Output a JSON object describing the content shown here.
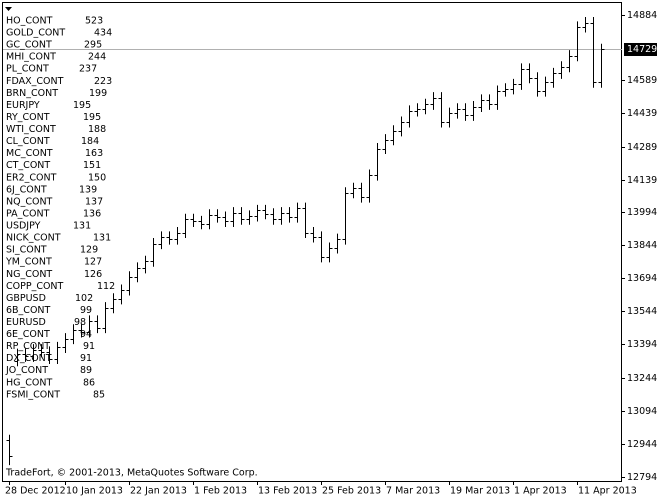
{
  "chart_data": {
    "type": "ohlc",
    "footer": "TradeFort, © 2001-2013, MetaQuotes Software Corp.",
    "price_label": 14729,
    "ylim": [
      12794,
      14884
    ],
    "yticks": [
      14884,
      14589,
      14439,
      14289,
      14139,
      13994,
      13844,
      13694,
      13544,
      13394,
      13244,
      13094,
      12944,
      12794
    ],
    "color": "#000000",
    "categories": [
      "28 Dec 2012",
      null,
      null,
      null,
      null,
      null,
      null,
      "10 Jan 2013",
      null,
      null,
      null,
      null,
      null,
      null,
      null,
      "22 Jan 2013",
      null,
      null,
      null,
      null,
      null,
      null,
      null,
      "1 Feb 2013",
      null,
      null,
      null,
      null,
      null,
      null,
      null,
      "13 Feb 2013",
      null,
      null,
      null,
      null,
      null,
      null,
      null,
      "25 Feb 2013",
      null,
      null,
      null,
      null,
      null,
      null,
      null,
      "7 Mar 2013",
      null,
      null,
      null,
      null,
      null,
      null,
      null,
      "19 Mar 2013",
      null,
      null,
      null,
      null,
      null,
      null,
      null,
      "1 Apr 2013",
      null,
      null,
      null,
      null,
      null,
      null,
      null,
      "11 Apr 2013",
      null,
      null,
      null
    ],
    "open": [
      12960,
      13320,
      13350,
      13340,
      13370,
      13360,
      13330,
      13380,
      13420,
      13460,
      13450,
      13500,
      13470,
      13560,
      13600,
      13640,
      13700,
      13740,
      13770,
      13850,
      13880,
      13870,
      13900,
      13960,
      13950,
      13940,
      13980,
      13970,
      13950,
      13990,
      13960,
      13975,
      14000,
      13985,
      13960,
      13990,
      13970,
      14010,
      13900,
      13880,
      13790,
      13830,
      13870,
      14080,
      14100,
      14060,
      14160,
      14280,
      14320,
      14360,
      14400,
      14450,
      14460,
      14480,
      14510,
      14400,
      14440,
      14460,
      14430,
      14470,
      14500,
      14480,
      14540,
      14550,
      14570,
      14640,
      14600,
      14540,
      14580,
      14620,
      14650,
      14700,
      14830,
      14850,
      14580
    ],
    "high": [
      12985,
      13375,
      13375,
      13395,
      13395,
      13385,
      13405,
      13445,
      13485,
      13485,
      13525,
      13525,
      13585,
      13625,
      13665,
      13725,
      13765,
      13795,
      13875,
      13905,
      13905,
      13925,
      13985,
      13985,
      13975,
      14005,
      14005,
      13995,
      14015,
      14015,
      14000,
      14025,
      14025,
      14010,
      14015,
      14015,
      14035,
      14035,
      13925,
      13905,
      13855,
      13895,
      14105,
      14125,
      14125,
      14185,
      14305,
      14345,
      14385,
      14425,
      14475,
      14485,
      14505,
      14535,
      14535,
      14465,
      14485,
      14485,
      14495,
      14525,
      14525,
      14565,
      14575,
      14595,
      14665,
      14665,
      14625,
      14605,
      14645,
      14675,
      14725,
      14855,
      14875,
      14875,
      14754
    ],
    "low": [
      12848,
      13295,
      13315,
      13315,
      13335,
      13305,
      13305,
      13355,
      13395,
      13425,
      13425,
      13445,
      13445,
      13535,
      13575,
      13615,
      13675,
      13715,
      13745,
      13825,
      13845,
      13845,
      13875,
      13925,
      13915,
      13915,
      13945,
      13925,
      13925,
      13935,
      13935,
      13950,
      13960,
      13935,
      13935,
      13945,
      13945,
      13875,
      13855,
      13765,
      13765,
      13805,
      13845,
      14055,
      14035,
      14035,
      14135,
      14255,
      14295,
      14335,
      14375,
      14425,
      14435,
      14455,
      14375,
      14375,
      14415,
      14405,
      14405,
      14445,
      14455,
      14455,
      14515,
      14525,
      14545,
      14575,
      14515,
      14515,
      14555,
      14595,
      14625,
      14675,
      14805,
      14555,
      14555
    ],
    "close": [
      12890,
      13350,
      13340,
      13370,
      13360,
      13330,
      13380,
      13420,
      13460,
      13450,
      13500,
      13470,
      13560,
      13600,
      13640,
      13700,
      13740,
      13770,
      13850,
      13880,
      13870,
      13900,
      13960,
      13950,
      13940,
      13980,
      13970,
      13950,
      13990,
      13960,
      13975,
      14000,
      13985,
      13960,
      13990,
      13970,
      14010,
      13900,
      13880,
      13790,
      13830,
      13870,
      14080,
      14100,
      14060,
      14160,
      14280,
      14320,
      14360,
      14400,
      14450,
      14460,
      14480,
      14510,
      14400,
      14440,
      14460,
      14430,
      14470,
      14500,
      14480,
      14540,
      14550,
      14570,
      14640,
      14600,
      14540,
      14580,
      14620,
      14650,
      14700,
      14830,
      14850,
      14580,
      14729
    ]
  },
  "symbols": [
    {
      "name": "HO_CONT",
      "value": 523
    },
    {
      "name": "GOLD_CONT",
      "value": 434
    },
    {
      "name": "GC_CONT",
      "value": 295
    },
    {
      "name": "MHI_CONT",
      "value": 244
    },
    {
      "name": "PL_CONT",
      "value": 237
    },
    {
      "name": "FDAX_CONT",
      "value": 223
    },
    {
      "name": "BRN_CONT",
      "value": 199
    },
    {
      "name": "EURJPY",
      "value": 195
    },
    {
      "name": "RY_CONT",
      "value": 195
    },
    {
      "name": "WTI_CONT",
      "value": 188
    },
    {
      "name": "CL_CONT",
      "value": 184
    },
    {
      "name": "MC_CONT",
      "value": 163
    },
    {
      "name": "CT_CONT",
      "value": 151
    },
    {
      "name": "ER2_CONT",
      "value": 150
    },
    {
      "name": "6J_CONT",
      "value": 139
    },
    {
      "name": "NQ_CONT",
      "value": 137
    },
    {
      "name": "PA_CONT",
      "value": 136
    },
    {
      "name": "USDJPY",
      "value": 131
    },
    {
      "name": "NICK_CONT",
      "value": 131
    },
    {
      "name": "SI_CONT",
      "value": 129
    },
    {
      "name": "YM_CONT",
      "value": 127
    },
    {
      "name": "NG_CONT",
      "value": 126
    },
    {
      "name": "COPP_CONT",
      "value": 112
    },
    {
      "name": "GBPUSD",
      "value": 102
    },
    {
      "name": "6B_CONT",
      "value": 99
    },
    {
      "name": "EURUSD",
      "value": 98
    },
    {
      "name": "6E_CONT",
      "value": 94
    },
    {
      "name": "RP_CONT",
      "value": 91
    },
    {
      "name": "DX_CONT",
      "value": 91
    },
    {
      "name": "JO_CONT",
      "value": 89
    },
    {
      "name": "HG_CONT",
      "value": 86
    },
    {
      "name": "FSMI_CONT",
      "value": 85
    }
  ]
}
